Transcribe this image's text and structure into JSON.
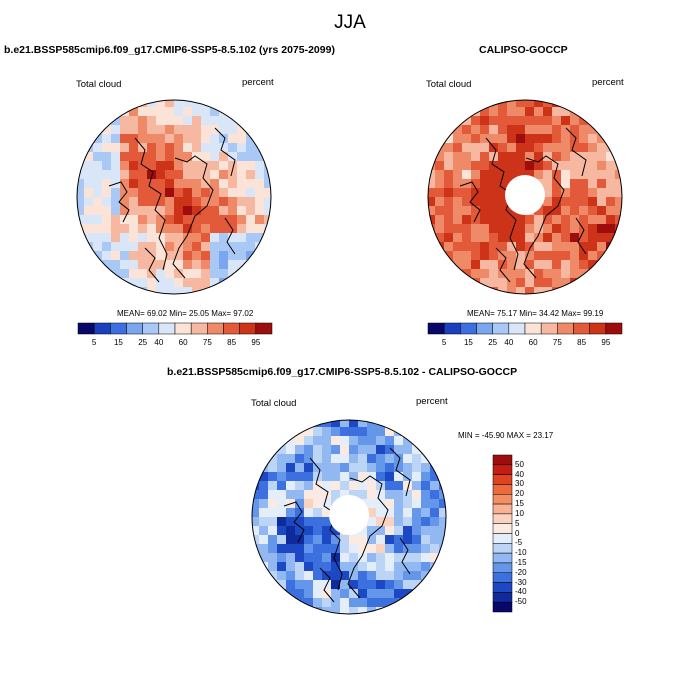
{
  "figure": {
    "main_title": "JJA"
  },
  "panels": [
    {
      "title": "b.e21.BSSP585cmip6.f09_g17.CMIP6-SSP5-8.5.102 (yrs 2075-2099)",
      "left_label": "Total cloud",
      "right_label": "percent",
      "stats": "MEAN=  69.02  Min=  25.05  Max=  97.02"
    },
    {
      "title": "CALIPSO-GOCCP",
      "left_label": "Total cloud",
      "right_label": "percent",
      "stats": "MEAN=  75.17  Min=  34.42  Max=  99.19"
    },
    {
      "title": "b.e21.BSSP585cmip6.f09_g17.CMIP6-SSP5-8.5.102 - CALIPSO-GOCCP",
      "left_label": "Total cloud",
      "right_label": "percent",
      "stats": "MIN = -45.90 MAX =  23.17"
    }
  ],
  "chart_data": [
    {
      "type": "heatmap",
      "projection": "north-polar-stereographic",
      "title": "b.e21.BSSP585cmip6.f09_g17.CMIP6-SSP5-8.5.102 (yrs 2075-2099)",
      "variable": "Total cloud",
      "units": "percent",
      "mean": 69.02,
      "min": 25.05,
      "max": 97.02,
      "colorbar_ticks": [
        "5",
        "15",
        "25",
        "40",
        "60",
        "75",
        "85",
        "95"
      ],
      "colorbar_colors": [
        "#08086b",
        "#1a3fbf",
        "#3d6fe0",
        "#7aa6f0",
        "#a9c8f5",
        "#d8e6f8",
        "#fbe3d8",
        "#f6b8a0",
        "#ef8a68",
        "#e35a3a",
        "#cc3318",
        "#9e0d0d"
      ],
      "missing_pole": false
    },
    {
      "type": "heatmap",
      "projection": "north-polar-stereographic",
      "title": "CALIPSO-GOCCP",
      "variable": "Total cloud",
      "units": "percent",
      "mean": 75.17,
      "min": 34.42,
      "max": 99.19,
      "colorbar_ticks": [
        "5",
        "15",
        "25",
        "40",
        "60",
        "75",
        "85",
        "95"
      ],
      "colorbar_colors": [
        "#08086b",
        "#1a3fbf",
        "#3d6fe0",
        "#7aa6f0",
        "#a9c8f5",
        "#d8e6f8",
        "#fbe3d8",
        "#f6b8a0",
        "#ef8a68",
        "#e35a3a",
        "#cc3318",
        "#9e0d0d"
      ],
      "missing_pole": true
    },
    {
      "type": "heatmap",
      "projection": "north-polar-stereographic",
      "title": "b.e21.BSSP585cmip6.f09_g17.CMIP6-SSP5-8.5.102 - CALIPSO-GOCCP",
      "variable": "Total cloud",
      "units": "percent",
      "min": -45.9,
      "max": 23.17,
      "colorbar_ticks": [
        "50",
        "40",
        "30",
        "20",
        "15",
        "10",
        "5",
        "0",
        "-5",
        "-10",
        "-15",
        "-20",
        "-30",
        "-40",
        "-50"
      ],
      "colorbar_colors": [
        "#9e0d0d",
        "#c41e14",
        "#e0431f",
        "#ee6a3c",
        "#f48f63",
        "#f8b294",
        "#fbd2bf",
        "#fbeae2",
        "#e4eefa",
        "#bcd4f6",
        "#92b8f2",
        "#6496ea",
        "#3c70de",
        "#1d48c4",
        "#0f2a9a",
        "#08086b"
      ],
      "missing_pole": true
    }
  ]
}
